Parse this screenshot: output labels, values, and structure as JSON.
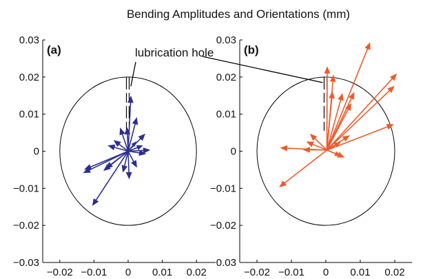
{
  "figure_title": "Bending Amplitudes and Orientations (mm)",
  "annotation": "lubrication hole",
  "chart_data": [
    {
      "type": "vector",
      "panel_label": "(a)",
      "color": "#2b2f8f",
      "xlim": [
        -0.025,
        0.025
      ],
      "ylim": [
        -0.03,
        0.03
      ],
      "xticks": [
        "-0.02",
        "-0.01",
        "0",
        "0.01",
        "0.02"
      ],
      "yticks": [
        "0.03",
        "0.02",
        "0.01",
        "0",
        "-0.01",
        "-0.02",
        "-0.03"
      ],
      "circle_radius": 0.02,
      "hole_markers": [
        {
          "x": -0.0005,
          "y_top": 0.02,
          "y_bottom": 0.0055
        },
        {
          "x": 0.0003,
          "y_top": 0.02,
          "y_bottom": 0.0055
        }
      ],
      "origin": [
        0,
        0
      ],
      "vectors": [
        [
          0.0008,
          0.0148
        ],
        [
          0.0025,
          0.009
        ],
        [
          0.0049,
          0.0046
        ],
        [
          0.0023,
          0.0025
        ],
        [
          0.0042,
          0.0015
        ],
        [
          0.0063,
          0.0003
        ],
        [
          0.0051,
          -0.0007
        ],
        [
          0.0025,
          -0.0043
        ],
        [
          0.0003,
          -0.0074
        ],
        [
          -0.0015,
          -0.0056
        ],
        [
          -0.0065,
          -0.0046
        ],
        [
          -0.0071,
          -0.0052
        ],
        [
          -0.0127,
          -0.0049
        ],
        [
          -0.013,
          -0.0058
        ],
        [
          -0.0104,
          -0.0146
        ],
        [
          -0.0023,
          0.0062
        ],
        [
          -0.0041,
          0.0029
        ],
        [
          -0.0058,
          0.0015
        ],
        [
          -0.0003,
          0.0063
        ]
      ]
    },
    {
      "type": "vector",
      "panel_label": "(b)",
      "color": "#ee5a2a",
      "xlim": [
        -0.025,
        0.025
      ],
      "ylim": [
        -0.03,
        0.03
      ],
      "xticks": [
        "-0.02",
        "-0.01",
        "0",
        "0.01",
        "0.02"
      ],
      "yticks": [
        "0.03",
        "0.02",
        "0.01",
        "0",
        "-0.01",
        "-0.02",
        "-0.03"
      ],
      "circle_radius": 0.02,
      "hole_markers": [
        {
          "x": -0.0005,
          "y_top": 0.02,
          "y_bottom": 0.0055
        },
        {
          "x": 0.0003,
          "y_top": 0.02,
          "y_bottom": 0.0055
        }
      ],
      "origin": [
        0.0003,
        0.0003
      ],
      "vectors": [
        [
          0.0128,
          0.0292
        ],
        [
          0.0205,
          0.0208
        ],
        [
          0.0198,
          0.0175
        ],
        [
          0.0082,
          0.0158
        ],
        [
          0.0073,
          0.0128
        ],
        [
          0.0004,
          0.0227
        ],
        [
          0.0022,
          0.0205
        ],
        [
          0.0048,
          0.0155
        ],
        [
          0.0019,
          0.016
        ],
        [
          0.0196,
          0.0072
        ],
        [
          0.0068,
          0.0042
        ],
        [
          0.0042,
          0.0024
        ],
        [
          0.0042,
          -0.0012
        ],
        [
          0.0053,
          -0.0016
        ],
        [
          -0.0045,
          0.0046
        ],
        [
          -0.0055,
          0.0025
        ],
        [
          -0.0065,
          0.0004
        ],
        [
          -0.0131,
          0.0009
        ],
        [
          -0.0134,
          -0.0096
        ]
      ]
    }
  ]
}
